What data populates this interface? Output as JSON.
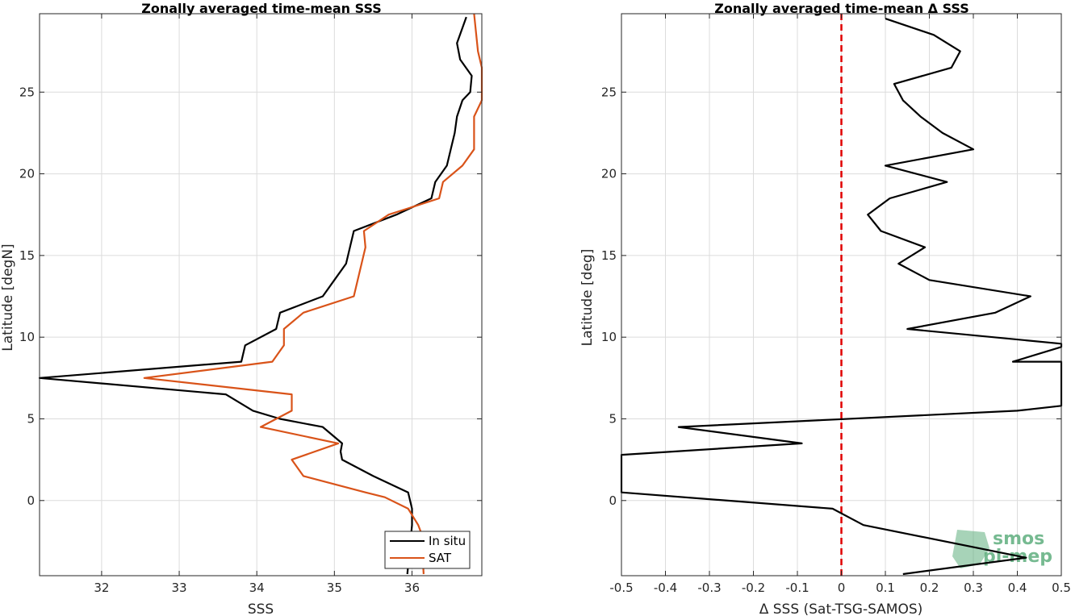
{
  "chart_data": [
    {
      "type": "line",
      "title": "Zonally averaged time-mean SSS",
      "xlabel": "SSS",
      "ylabel": "Latitude [degN]",
      "xlim": [
        31.2,
        36.9
      ],
      "ylim": [
        -4.6,
        29.8
      ],
      "xticks": [
        "32",
        "33",
        "34",
        "35",
        "36"
      ],
      "xtick_values": [
        32,
        33,
        34,
        35,
        36
      ],
      "yticks": [
        "0",
        "5",
        "10",
        "15",
        "20",
        "25"
      ],
      "ytick_values": [
        0,
        5,
        10,
        15,
        20,
        25
      ],
      "grid": true,
      "legend": "bottom-right",
      "series": [
        {
          "name": "In situ",
          "color": "#000000",
          "points": [
            [
              35.94,
              -4.5
            ],
            [
              36.0,
              -1.5
            ],
            [
              36.0,
              -0.5
            ],
            [
              35.95,
              0.5
            ],
            [
              35.5,
              1.5
            ],
            [
              35.1,
              2.5
            ],
            [
              35.08,
              3.0
            ],
            [
              35.1,
              3.5
            ],
            [
              34.85,
              4.5
            ],
            [
              34.3,
              5.0
            ],
            [
              33.95,
              5.5
            ],
            [
              33.6,
              6.5
            ],
            [
              31.2,
              7.5
            ],
            [
              33.8,
              8.5
            ],
            [
              33.85,
              9.5
            ],
            [
              34.25,
              10.5
            ],
            [
              34.3,
              11.5
            ],
            [
              34.85,
              12.5
            ],
            [
              35.0,
              13.5
            ],
            [
              35.15,
              14.5
            ],
            [
              35.2,
              15.5
            ],
            [
              35.25,
              16.5
            ],
            [
              35.8,
              17.5
            ],
            [
              36.25,
              18.5
            ],
            [
              36.3,
              19.5
            ],
            [
              36.45,
              20.5
            ],
            [
              36.5,
              21.5
            ],
            [
              36.55,
              22.5
            ],
            [
              36.58,
              23.5
            ],
            [
              36.65,
              24.5
            ],
            [
              36.75,
              25.0
            ],
            [
              36.77,
              26.0
            ],
            [
              36.62,
              27.0
            ],
            [
              36.58,
              28.0
            ],
            [
              36.7,
              29.6
            ]
          ]
        },
        {
          "name": "SAT",
          "color": "#d95319",
          "points": [
            [
              36.15,
              -4.5
            ],
            [
              36.12,
              -2.0
            ],
            [
              36.08,
              -1.5
            ],
            [
              35.95,
              -0.5
            ],
            [
              35.65,
              0.2
            ],
            [
              35.4,
              0.5
            ],
            [
              34.6,
              1.5
            ],
            [
              34.45,
              2.5
            ],
            [
              35.05,
              3.5
            ],
            [
              34.05,
              4.5
            ],
            [
              34.45,
              5.5
            ],
            [
              34.45,
              6.5
            ],
            [
              32.55,
              7.5
            ],
            [
              34.2,
              8.5
            ],
            [
              34.35,
              9.5
            ],
            [
              34.35,
              10.5
            ],
            [
              34.6,
              11.5
            ],
            [
              35.25,
              12.5
            ],
            [
              35.3,
              13.5
            ],
            [
              35.35,
              14.5
            ],
            [
              35.4,
              15.5
            ],
            [
              35.38,
              16.5
            ],
            [
              35.7,
              17.5
            ],
            [
              36.35,
              18.5
            ],
            [
              36.4,
              19.5
            ],
            [
              36.65,
              20.5
            ],
            [
              36.8,
              21.5
            ],
            [
              36.8,
              22.5
            ],
            [
              36.8,
              23.5
            ],
            [
              36.9,
              24.5
            ],
            [
              36.9,
              25.5
            ],
            [
              36.9,
              26.5
            ],
            [
              36.85,
              27.5
            ],
            [
              36.8,
              29.8
            ]
          ]
        }
      ]
    },
    {
      "type": "line",
      "title": "Zonally averaged time-mean Δ SSS",
      "xlabel": "Δ SSS (Sat-TSG-SAMOS)",
      "ylabel": "Latitude [deg]",
      "xlim": [
        -0.5,
        0.5
      ],
      "ylim": [
        -4.6,
        29.8
      ],
      "xticks": [
        "-0.5",
        "-0.4",
        "-0.3",
        "-0.2",
        "-0.1",
        "0",
        "0.1",
        "0.2",
        "0.3",
        "0.4",
        "0.5"
      ],
      "xtick_values": [
        -0.5,
        -0.4,
        -0.3,
        -0.2,
        -0.1,
        0,
        0.1,
        0.2,
        0.3,
        0.4,
        0.5
      ],
      "yticks": [
        "0",
        "5",
        "10",
        "15",
        "20",
        "25"
      ],
      "ytick_values": [
        0,
        5,
        10,
        15,
        20,
        25
      ],
      "grid": true,
      "reference_line": {
        "x": 0,
        "color": "#e00000",
        "style": "dashed"
      },
      "series": [
        {
          "color": "#000000",
          "points": [
            [
              0.14,
              -4.5
            ],
            [
              0.42,
              -3.5
            ],
            [
              0.05,
              -1.5
            ],
            [
              -0.02,
              -0.5
            ],
            [
              -0.5,
              0.5
            ],
            [
              -0.5,
              2.8
            ],
            [
              -0.09,
              3.5
            ],
            [
              -0.37,
              4.5
            ],
            [
              0.4,
              5.5
            ],
            [
              0.5,
              5.8
            ],
            [
              0.5,
              8.5
            ],
            [
              0.39,
              8.5
            ],
            [
              0.5,
              9.4
            ],
            [
              0.5,
              9.6
            ],
            [
              0.15,
              10.5
            ],
            [
              0.35,
              11.5
            ],
            [
              0.43,
              12.5
            ],
            [
              0.2,
              13.5
            ],
            [
              0.13,
              14.5
            ],
            [
              0.19,
              15.5
            ],
            [
              0.09,
              16.5
            ],
            [
              0.06,
              17.5
            ],
            [
              0.11,
              18.5
            ],
            [
              0.24,
              19.5
            ],
            [
              0.1,
              20.5
            ],
            [
              0.3,
              21.5
            ],
            [
              0.23,
              22.5
            ],
            [
              0.18,
              23.5
            ],
            [
              0.14,
              24.5
            ],
            [
              0.12,
              25.5
            ],
            [
              0.25,
              26.5
            ],
            [
              0.27,
              27.5
            ],
            [
              0.21,
              28.5
            ],
            [
              0.1,
              29.5
            ]
          ]
        }
      ]
    }
  ],
  "legend": {
    "items": [
      {
        "label": "In situ",
        "color": "#000000"
      },
      {
        "label": "SAT",
        "color": "#d95319"
      }
    ]
  },
  "watermark": {
    "text_top": "smos",
    "text_bottom": "pi-mep",
    "color": "#5fae7e"
  }
}
